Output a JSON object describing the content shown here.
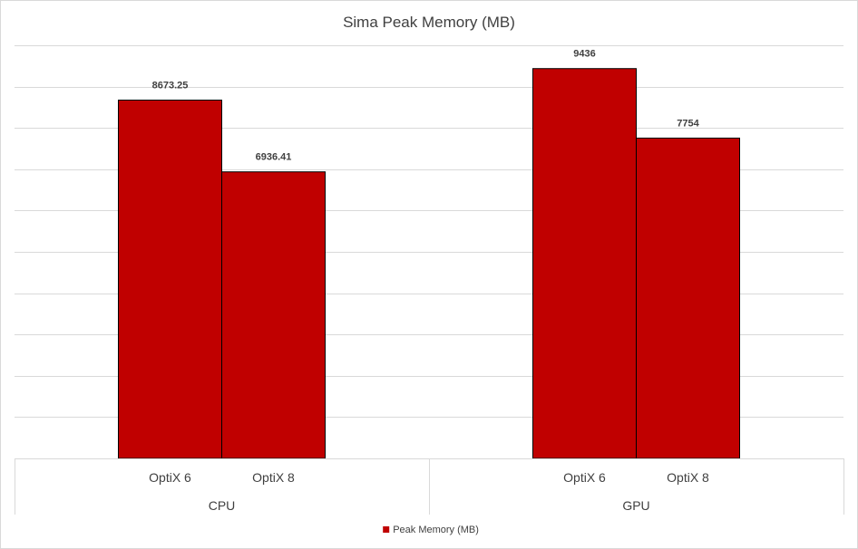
{
  "chart_data": {
    "type": "bar",
    "title": "Sima Peak Memory (MB)",
    "groups": [
      "CPU",
      "GPU"
    ],
    "categories": [
      "OptiX 6",
      "OptiX 8"
    ],
    "series": [
      {
        "name": "Peak Memory (MB)",
        "color": "#c00000",
        "values": [
          {
            "group": "CPU",
            "category": "OptiX 6",
            "value": 8673.25,
            "label": "8673.25"
          },
          {
            "group": "CPU",
            "category": "OptiX 8",
            "value": 6936.41,
            "label": "6936.41"
          },
          {
            "group": "GPU",
            "category": "OptiX 6",
            "value": 9436,
            "label": "9436"
          },
          {
            "group": "GPU",
            "category": "OptiX 8",
            "value": 7754,
            "label": "7754"
          }
        ]
      }
    ],
    "ylim": [
      0,
      10000
    ],
    "y_gridlines": [
      1000,
      2000,
      3000,
      4000,
      5000,
      6000,
      7000,
      8000,
      9000,
      10000
    ],
    "y_tick_labels_shown": false,
    "grid": true,
    "legend": {
      "position": "bottom",
      "entries": [
        "Peak Memory (MB)"
      ]
    }
  }
}
